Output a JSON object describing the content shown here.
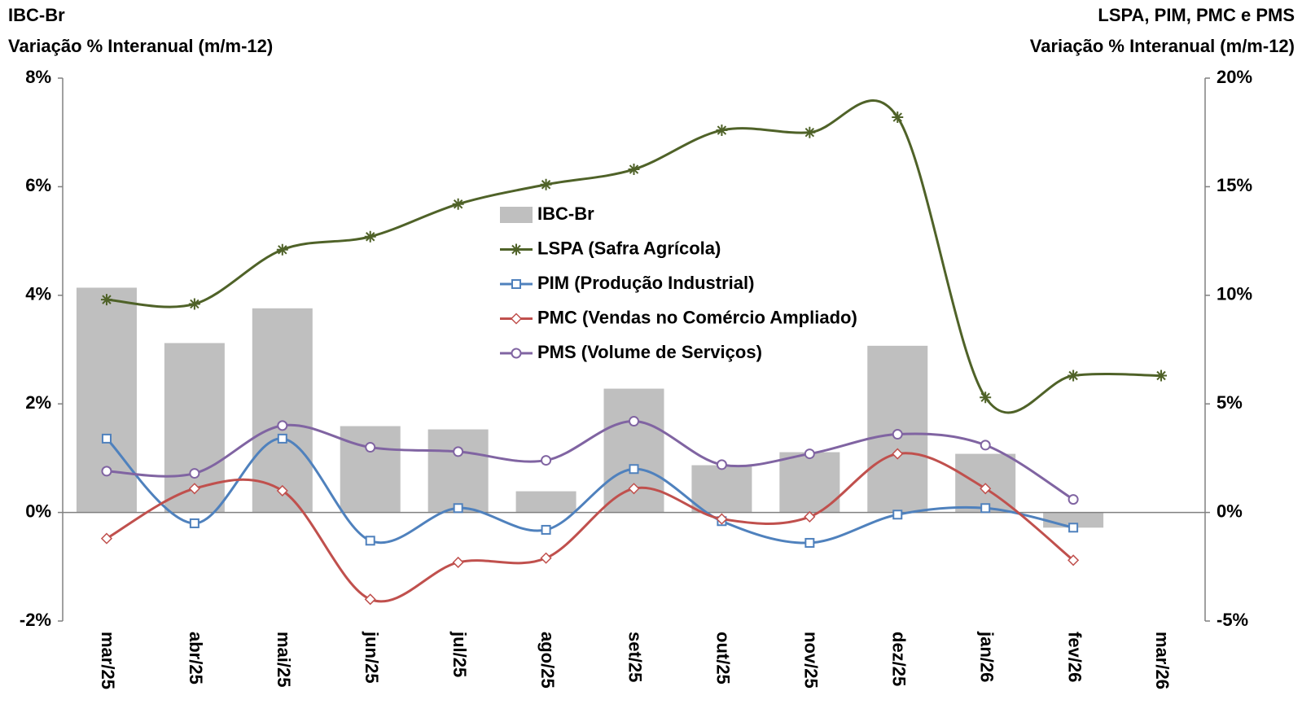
{
  "chart_data": {
    "type": "bar-line",
    "y_label": [
      "IBC-Br",
      "Variação % Interanual (m/m-12)"
    ],
    "y2_label": [
      "LSPA, PIM, PMC e PMS",
      "Variação % Interanual (m/m-12)"
    ],
    "categories": [
      "mar/25",
      "abr/25",
      "mai/25",
      "jun/25",
      "jul/25",
      "ago/25",
      "set/25",
      "out/25",
      "nov/25",
      "dez/25",
      "jan/26",
      "fev/26",
      "mar/26"
    ],
    "ylim": [
      -2,
      8
    ],
    "yticks": [
      {
        "value": -2,
        "label": "-2%"
      },
      {
        "value": 0,
        "label": "0%"
      },
      {
        "value": 2,
        "label": "2%"
      },
      {
        "value": 4,
        "label": "4%"
      },
      {
        "value": 6,
        "label": "6%"
      },
      {
        "value": 8,
        "label": "8%"
      }
    ],
    "y2lim": [
      -5,
      20
    ],
    "y2ticks": [
      {
        "value": -5,
        "label": "-5%"
      },
      {
        "value": 0,
        "label": "0%"
      },
      {
        "value": 5,
        "label": "5%"
      },
      {
        "value": 10,
        "label": "10%"
      },
      {
        "value": 15,
        "label": "15%"
      },
      {
        "value": 20,
        "label": "20%"
      }
    ],
    "series": [
      {
        "name": "IBC-Br",
        "kind": "bar",
        "color": "#bfbfbf",
        "values": [
          4.14,
          3.12,
          3.76,
          1.59,
          1.53,
          0.39,
          2.28,
          0.87,
          1.11,
          3.07,
          1.08,
          -0.28,
          null
        ]
      },
      {
        "name": "LSPA (Safra Agrícola)",
        "kind": "line",
        "marker": "star",
        "axis": "y2",
        "color": "#4f6228",
        "values": [
          9.8,
          9.6,
          12.1,
          12.7,
          14.2,
          15.1,
          15.8,
          17.6,
          17.5,
          18.2,
          5.3,
          6.3,
          6.3
        ]
      },
      {
        "name": "PIM (Produção Industrial)",
        "kind": "line",
        "marker": "square",
        "axis": "y2",
        "color": "#4f81bd",
        "values": [
          3.4,
          -0.5,
          3.4,
          -1.3,
          0.2,
          -0.8,
          2.0,
          -0.4,
          -1.4,
          -0.1,
          0.2,
          -0.7,
          null
        ]
      },
      {
        "name": "PMC (Vendas no Comércio Ampliado)",
        "kind": "line",
        "marker": "diamond",
        "axis": "y2",
        "color": "#c0504d",
        "values": [
          -1.2,
          1.1,
          1.0,
          -4.0,
          -2.3,
          -2.1,
          1.1,
          -0.3,
          -0.2,
          2.7,
          1.1,
          -2.2,
          null
        ]
      },
      {
        "name": "PMS (Volume de Serviços)",
        "kind": "line",
        "marker": "circle",
        "axis": "y2",
        "color": "#8064a2",
        "values": [
          1.9,
          1.8,
          4.0,
          3.0,
          2.8,
          2.4,
          4.2,
          2.2,
          2.7,
          3.6,
          3.1,
          0.6,
          null
        ]
      }
    ]
  }
}
